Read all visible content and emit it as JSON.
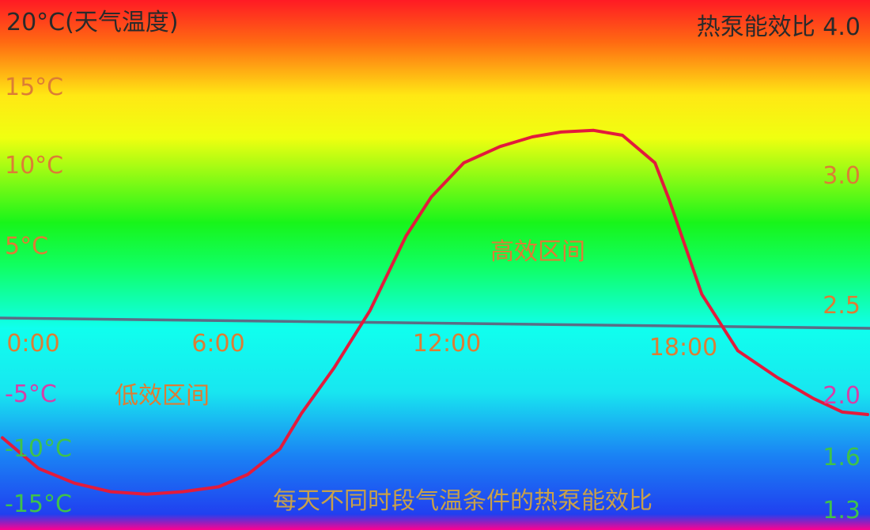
{
  "chart_data": {
    "type": "line",
    "title": "每天不同时段气温条件的热泵能效比",
    "left_axis": {
      "label": "20°C(天气温度)",
      "ticks": [
        "15°C",
        "10°C",
        "5°C",
        "-5°C",
        "-10°C",
        "-15°C"
      ],
      "tick_values": [
        15,
        10,
        5,
        -5,
        -10,
        -15
      ]
    },
    "right_axis": {
      "label": "热泵能效比 4.0",
      "ticks": [
        "3.0",
        "2.5",
        "2.0",
        "1.6",
        "1.3"
      ],
      "tick_values": [
        3.0,
        2.5,
        2.0,
        1.6,
        1.3
      ]
    },
    "x_ticks": [
      "0:00",
      "6:00",
      "12:00",
      "18:00"
    ],
    "x_tick_values": [
      0,
      6,
      12,
      18
    ],
    "xlim": [
      0,
      24
    ],
    "annotations": [
      "高效区间",
      "低效区间"
    ],
    "series": [
      {
        "x": [
          0,
          1,
          2,
          3,
          4,
          5,
          6,
          6.8,
          7.7,
          8.3,
          9.2,
          10.2,
          11.2,
          11.9,
          12.8,
          13.8,
          14.7,
          15.5,
          16.4,
          17.2,
          18.1,
          18.5,
          19.4,
          20.4,
          21.5,
          22.5,
          23.3,
          24
        ],
        "y": [
          -8.8,
          -11.3,
          -12.5,
          -13.2,
          -13.4,
          -13.2,
          -12.8,
          -11.8,
          -9.7,
          -6.8,
          -3.1,
          1.2,
          5.8,
          8.2,
          10.3,
          11.3,
          11.9,
          12.2,
          12.3,
          12.0,
          10.3,
          8.0,
          2.2,
          -1.7,
          -3.9,
          -5.6,
          -6.7,
          -6.9
        ]
      }
    ],
    "reference_line": {
      "y": 0.8
    },
    "ylim": [
      -16,
      20
    ]
  },
  "colors": {
    "curve": "#e21b3c",
    "reference_line": "#5a6d86",
    "label_orange": "#dc7d35",
    "label_magenta": "#d63fa8",
    "label_green": "#3fc24a",
    "title_text": "#c8a04a",
    "dark_text": "#2a2a2a"
  }
}
